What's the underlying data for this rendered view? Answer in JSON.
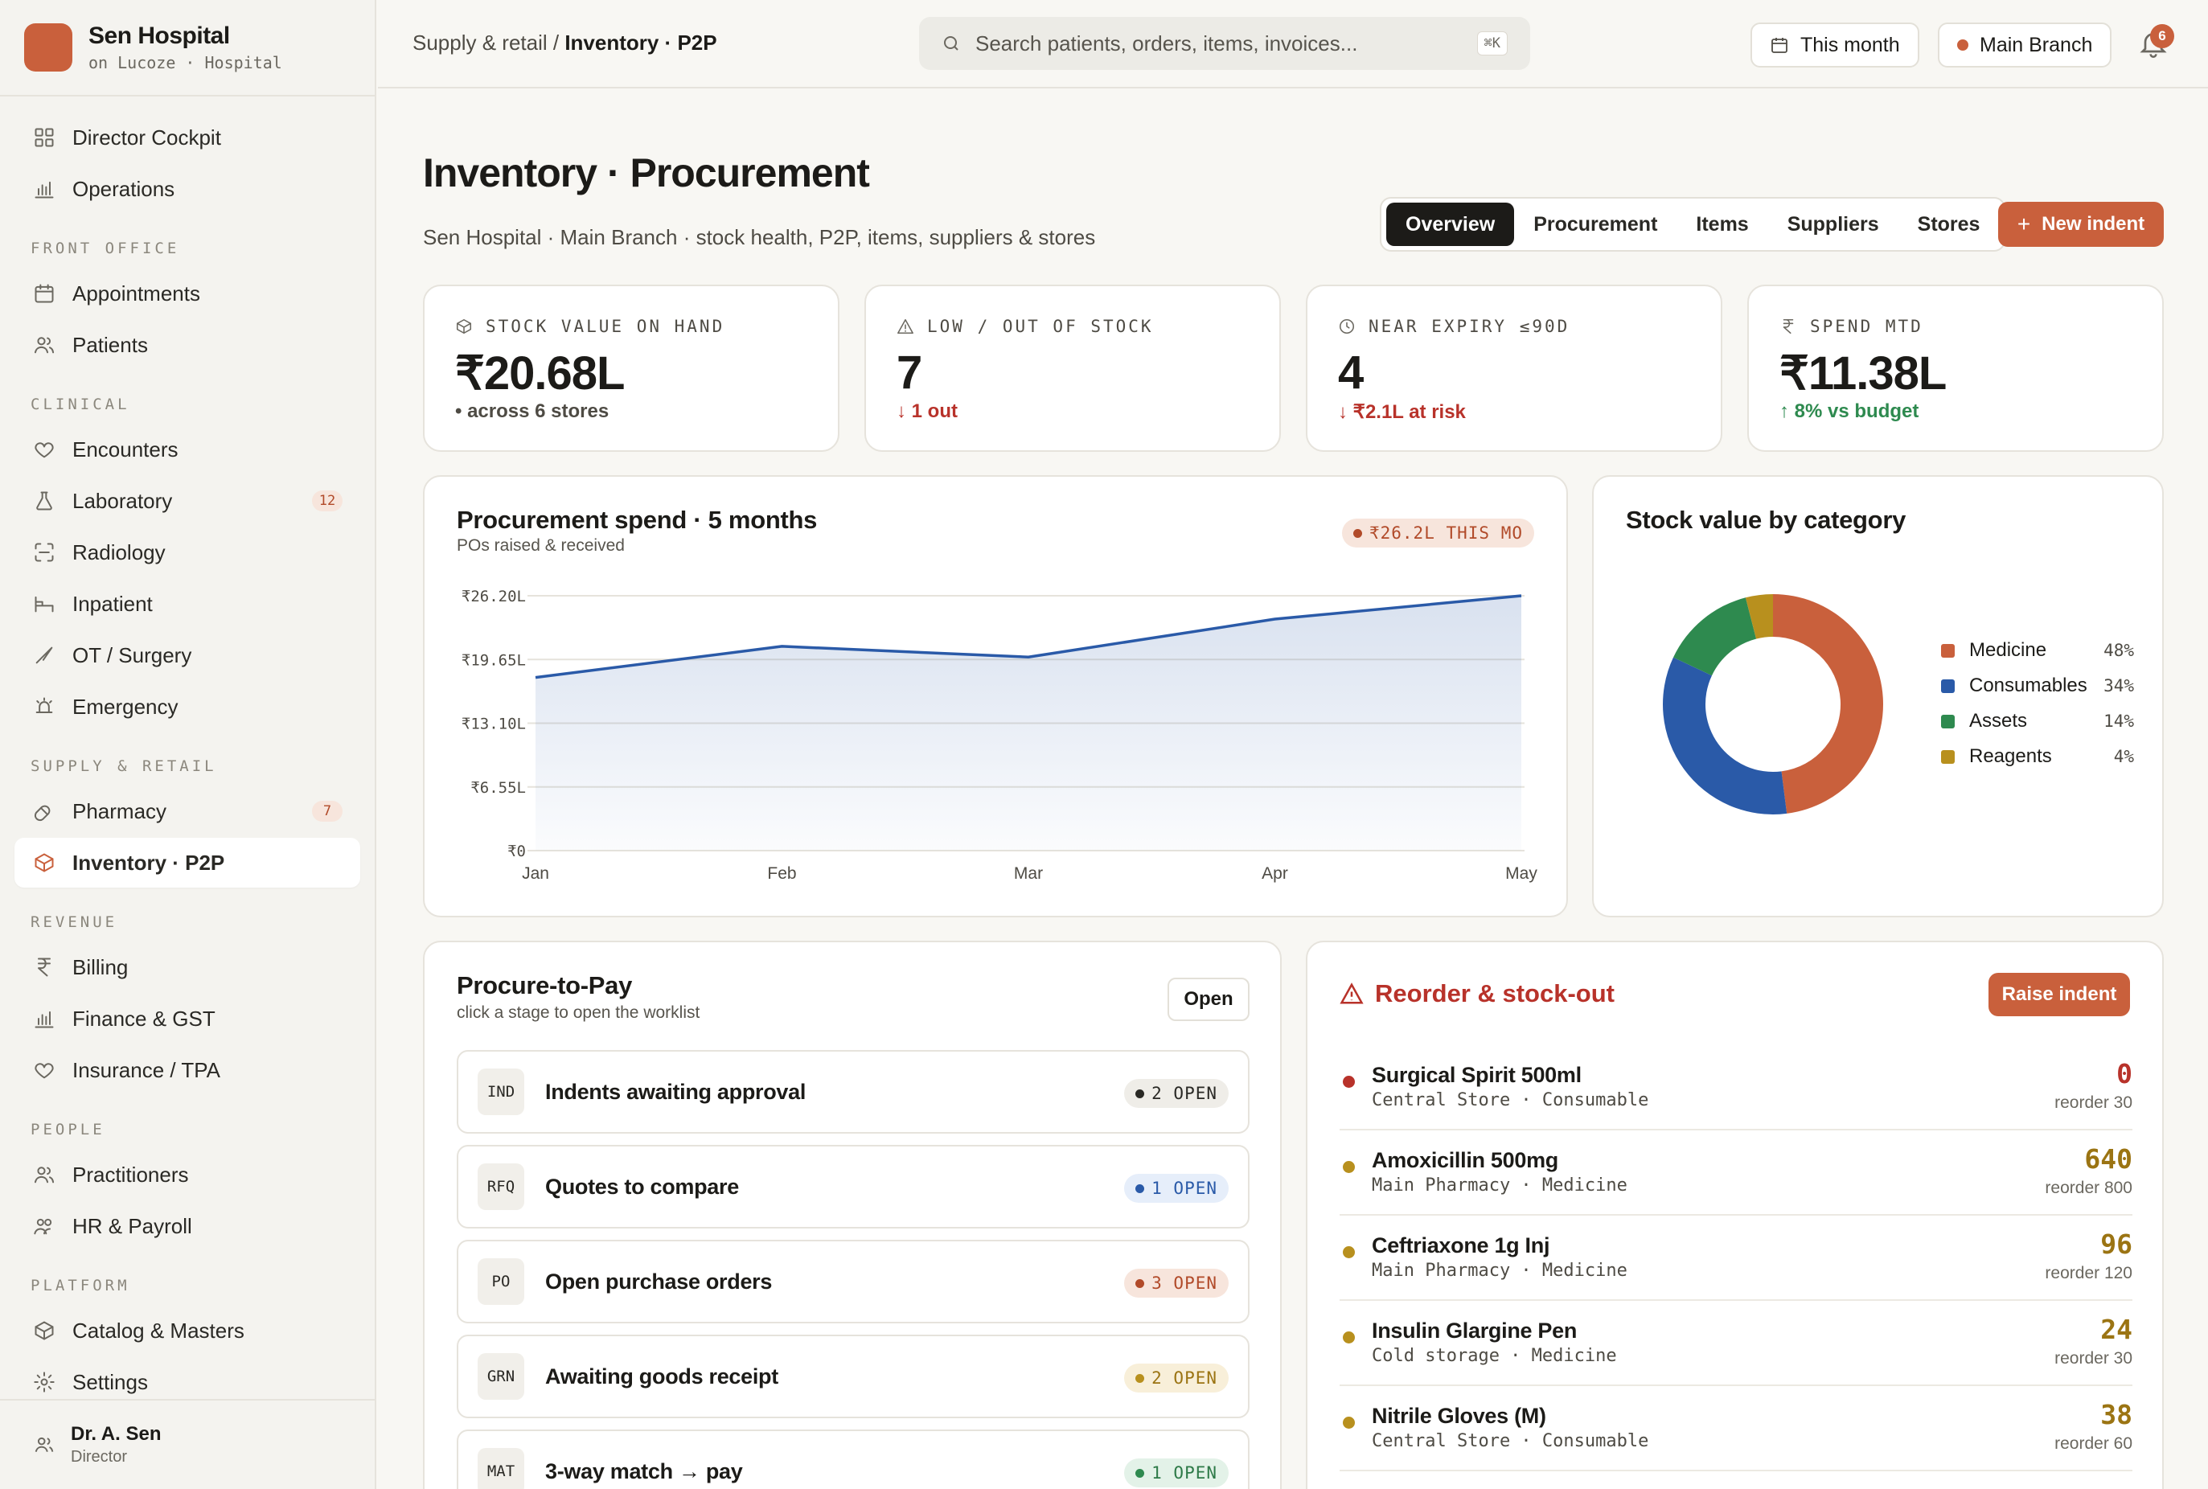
{
  "brand": {
    "name": "Sen Hospital",
    "sub": "on Lucoze · Hospital"
  },
  "sidebar": {
    "top": [
      {
        "label": "Director Cockpit",
        "icon": "grid-icon"
      },
      {
        "label": "Operations",
        "icon": "bar-chart-icon"
      }
    ],
    "sections": [
      {
        "title": "FRONT OFFICE",
        "items": [
          {
            "label": "Appointments",
            "icon": "calendar-icon"
          },
          {
            "label": "Patients",
            "icon": "users-icon"
          }
        ]
      },
      {
        "title": "CLINICAL",
        "items": [
          {
            "label": "Encounters",
            "icon": "heart-icon"
          },
          {
            "label": "Laboratory",
            "icon": "flask-icon",
            "badge": "12"
          },
          {
            "label": "Radiology",
            "icon": "scan-icon"
          },
          {
            "label": "Inpatient",
            "icon": "bed-icon"
          },
          {
            "label": "OT / Surgery",
            "icon": "scalpel-icon"
          },
          {
            "label": "Emergency",
            "icon": "siren-icon"
          }
        ]
      },
      {
        "title": "SUPPLY & RETAIL",
        "items": [
          {
            "label": "Pharmacy",
            "icon": "pill-icon",
            "badge": "7"
          },
          {
            "label": "Inventory · P2P",
            "icon": "box-icon",
            "active": true
          }
        ]
      },
      {
        "title": "REVENUE",
        "items": [
          {
            "label": "Billing",
            "icon": "rupee-icon"
          },
          {
            "label": "Finance & GST",
            "icon": "bar-chart-icon"
          },
          {
            "label": "Insurance / TPA",
            "icon": "heart-icon"
          }
        ]
      },
      {
        "title": "PEOPLE",
        "items": [
          {
            "label": "Practitioners",
            "icon": "users-icon"
          },
          {
            "label": "HR & Payroll",
            "icon": "people-icon"
          }
        ]
      },
      {
        "title": "PLATFORM",
        "items": [
          {
            "label": "Catalog & Masters",
            "icon": "box-icon"
          },
          {
            "label": "Settings",
            "icon": "gear-icon"
          }
        ]
      }
    ],
    "user": {
      "name": "Dr. A. Sen",
      "role": "Director"
    }
  },
  "topbar": {
    "crumb_parent": "Supply & retail / ",
    "crumb_current": "Inventory · P2P",
    "search_placeholder": "Search patients, orders, items, invoices...",
    "search_shortcut": "⌘K",
    "period": "This month",
    "branch": "Main Branch",
    "notifications": "6"
  },
  "page": {
    "title": "Inventory · Procurement",
    "subtitle": "Sen Hospital · Main Branch · stock health, P2P, items, suppliers & stores",
    "tabs": [
      "Overview",
      "Procurement",
      "Items",
      "Suppliers",
      "Stores"
    ],
    "active_tab": 0,
    "new_indent": "New indent"
  },
  "kpis": [
    {
      "label": "STOCK VALUE ON HAND",
      "value": "₹20.68L",
      "sub": "• across 6 stores",
      "tone": "neutral",
      "icon": "box-icon"
    },
    {
      "label": "LOW / OUT OF STOCK",
      "value": "7",
      "sub": "↓ 1 out",
      "tone": "bad",
      "icon": "warning-icon"
    },
    {
      "label": "NEAR EXPIRY ≤90D",
      "value": "4",
      "sub": "↓ ₹2.1L at risk",
      "tone": "bad",
      "icon": "clock-icon"
    },
    {
      "label": "SPEND MTD",
      "value": "₹11.38L",
      "sub": "↑ 8% vs budget",
      "tone": "good",
      "icon": "rupee-icon"
    }
  ],
  "spend_card": {
    "title": "Procurement spend · 5 months",
    "subtitle": "POs raised & received",
    "badge": "₹26.2L THIS MO"
  },
  "category_card": {
    "title": "Stock value by category"
  },
  "chart_data": [
    {
      "type": "area",
      "title": "Procurement spend · 5 months",
      "subtitle": "POs raised & received",
      "categories": [
        "Jan",
        "Feb",
        "Mar",
        "Apr",
        "May"
      ],
      "series": [
        {
          "values": [
            17.8,
            21.0,
            19.9,
            23.8,
            26.2
          ]
        }
      ],
      "unit": "₹L",
      "ylim": [
        0,
        26.2
      ],
      "yticks": [
        "₹0",
        "₹6.55L",
        "₹13.10L",
        "₹19.65L",
        "₹26.20L"
      ],
      "ytick_values": [
        0,
        6.55,
        13.1,
        19.65,
        26.2
      ],
      "grid": true,
      "color": "#2a5aa8"
    },
    {
      "type": "pie",
      "donut": true,
      "title": "Stock value by category",
      "categories": [
        "Medicine",
        "Consumables",
        "Assets",
        "Reagents"
      ],
      "values": [
        48,
        34,
        14,
        4
      ],
      "labels": [
        "48%",
        "34%",
        "14%",
        "4%"
      ],
      "colors": [
        "#c9603c",
        "#2a5aa8",
        "#2e8a4f",
        "#b8901e"
      ],
      "legend": "right"
    }
  ],
  "p2p": {
    "title": "Procure-to-Pay",
    "subtitle": "click a stage to open the worklist",
    "open_button": "Open",
    "stages": [
      {
        "code": "IND",
        "label": "Indents awaiting approval",
        "count": "2 OPEN",
        "tone": "neutral"
      },
      {
        "code": "RFQ",
        "label": "Quotes to compare",
        "count": "1 OPEN",
        "tone": "blue"
      },
      {
        "code": "PO",
        "label": "Open purchase orders",
        "count": "3 OPEN",
        "tone": "red"
      },
      {
        "code": "GRN",
        "label": "Awaiting goods receipt",
        "count": "2 OPEN",
        "tone": "amber"
      },
      {
        "code": "MAT",
        "label": "3-way match → pay",
        "count": "1 OPEN",
        "tone": "green"
      }
    ]
  },
  "reorder": {
    "title": "Reorder & stock-out",
    "button": "Raise indent",
    "items": [
      {
        "name": "Surgical Spirit 500ml",
        "meta": "Central Store · Consumable",
        "qty": "0",
        "reorder": "reorder 30",
        "tone": "red"
      },
      {
        "name": "Amoxicillin 500mg",
        "meta": "Main Pharmacy · Medicine",
        "qty": "640",
        "reorder": "reorder 800",
        "tone": "amber"
      },
      {
        "name": "Ceftriaxone 1g Inj",
        "meta": "Main Pharmacy · Medicine",
        "qty": "96",
        "reorder": "reorder 120",
        "tone": "amber"
      },
      {
        "name": "Insulin Glargine Pen",
        "meta": "Cold storage · Medicine",
        "qty": "24",
        "reorder": "reorder 30",
        "tone": "amber"
      },
      {
        "name": "Nitrile Gloves (M)",
        "meta": "Central Store · Consumable",
        "qty": "38",
        "reorder": "reorder 60",
        "tone": "amber"
      }
    ]
  },
  "colors": {
    "accent": "#c9603c",
    "blue": "#2a5aa8",
    "green": "#2e8a4f",
    "amber": "#b8901e",
    "red": "#b8322a",
    "ink": "#1c1b18"
  }
}
